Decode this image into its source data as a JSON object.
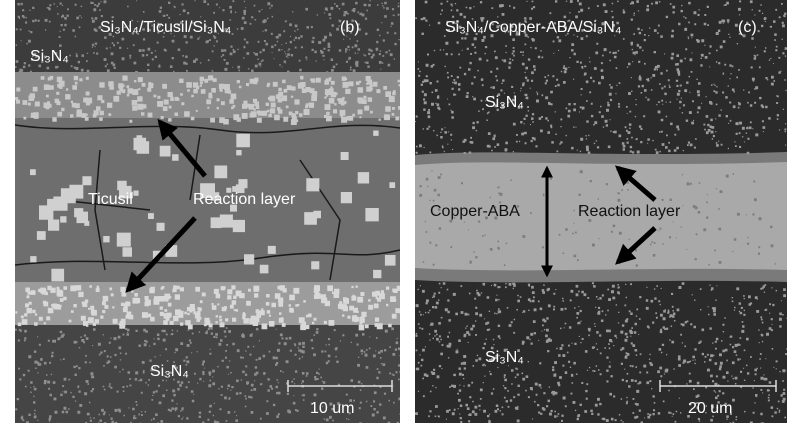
{
  "panels": [
    {
      "title": "Si₃N₄/Ticusil/Si₃N₄",
      "tag": "(b)",
      "labels": [
        "Si₃N₄",
        "Ticusil",
        "Reaction layer",
        "Si₃N₄"
      ],
      "scale_bar": "10 um"
    },
    {
      "title": "Si₃N₄/Copper-ABA/Si₃N₄",
      "tag": "(c)",
      "labels": [
        "Si₃N₄",
        "Copper-ABA",
        "Reaction layer",
        "Si₃N₄"
      ],
      "scale_bar": "20 um"
    }
  ]
}
